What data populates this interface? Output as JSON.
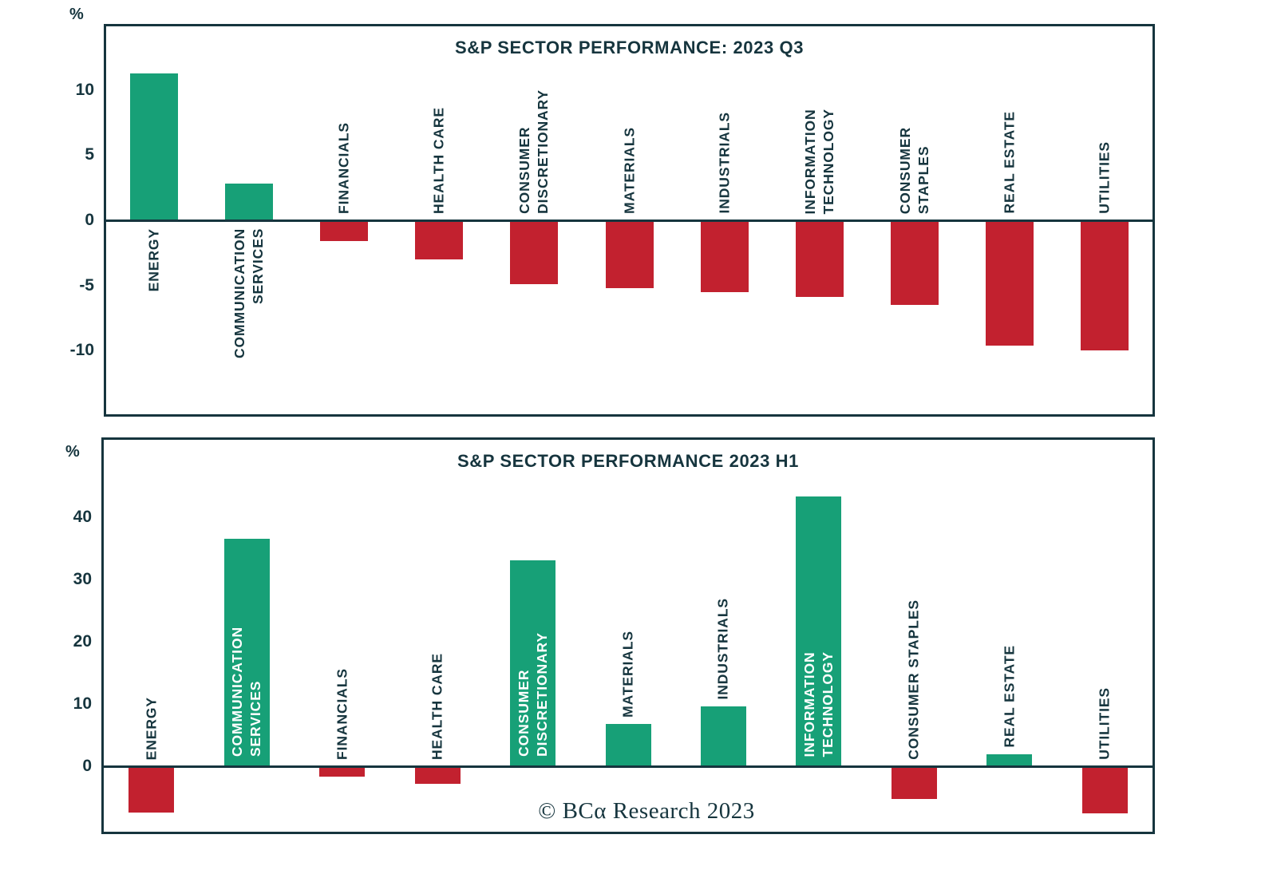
{
  "colors": {
    "green": "#17a077",
    "red": "#c2212f",
    "dark": "#16353e",
    "white": "#ffffff"
  },
  "footer": {
    "text": "© BCα Research 2023"
  },
  "chart_data": [
    {
      "type": "bar",
      "title": "S&P SECTOR PERFORMANCE: 2023 Q3",
      "unit": "%",
      "xlabel": "",
      "ylabel": "%",
      "ylim": [
        -14.9,
        14.9
      ],
      "yticks": [
        10,
        5,
        0,
        -5,
        -10
      ],
      "grid": false,
      "legend": "none",
      "bars": [
        {
          "category": "ENERGY",
          "label_lines": [
            "ENERGY"
          ],
          "value": 11.3,
          "color": "green",
          "label_pos": "below-axis",
          "label_color": "dark"
        },
        {
          "category": "COMMUNICATION SERVICES",
          "label_lines": [
            "COMMUNICATION",
            "SERVICES"
          ],
          "value": 2.8,
          "color": "green",
          "label_pos": "below-axis",
          "label_color": "dark"
        },
        {
          "category": "FINANCIALS",
          "label_lines": [
            "FINANCIALS"
          ],
          "value": -1.6,
          "color": "red",
          "label_pos": "above-axis",
          "label_color": "dark"
        },
        {
          "category": "HEALTH CARE",
          "label_lines": [
            "HEALTH CARE"
          ],
          "value": -3.0,
          "color": "red",
          "label_pos": "above-axis",
          "label_color": "dark"
        },
        {
          "category": "CONSUMER DISCRETIONARY",
          "label_lines": [
            "CONSUMER",
            "DISCRETIONARY"
          ],
          "value": -4.9,
          "color": "red",
          "label_pos": "above-axis",
          "label_color": "dark"
        },
        {
          "category": "MATERIALS",
          "label_lines": [
            "MATERIALS"
          ],
          "value": -5.2,
          "color": "red",
          "label_pos": "above-axis",
          "label_color": "dark"
        },
        {
          "category": "INDUSTRIALS",
          "label_lines": [
            "INDUSTRIALS"
          ],
          "value": -5.5,
          "color": "red",
          "label_pos": "above-axis",
          "label_color": "dark"
        },
        {
          "category": "INFORMATION TECHNOLOGY",
          "label_lines": [
            "INFORMATION",
            "TECHNOLOGY"
          ],
          "value": -5.9,
          "color": "red",
          "label_pos": "above-axis",
          "label_color": "dark"
        },
        {
          "category": "CONSUMER STAPLES",
          "label_lines": [
            "CONSUMER",
            "STAPLES"
          ],
          "value": -6.5,
          "color": "red",
          "label_pos": "above-axis",
          "label_color": "dark"
        },
        {
          "category": "REAL ESTATE",
          "label_lines": [
            "REAL ESTATE"
          ],
          "value": -9.6,
          "color": "red",
          "label_pos": "above-axis",
          "label_color": "dark"
        },
        {
          "category": "UTILITIES",
          "label_lines": [
            "UTILITIES"
          ],
          "value": -10.0,
          "color": "red",
          "label_pos": "above-axis",
          "label_color": "dark"
        }
      ]
    },
    {
      "type": "bar",
      "title": "S&P SECTOR PERFORMANCE 2023 H1",
      "unit": "%",
      "xlabel": "",
      "ylabel": "%",
      "ylim": [
        -10.5,
        52.5
      ],
      "yticks": [
        40,
        30,
        20,
        10,
        0
      ],
      "grid": false,
      "legend": "none",
      "bars": [
        {
          "category": "ENERGY",
          "label_lines": [
            "ENERGY"
          ],
          "value": -7.4,
          "color": "red",
          "label_pos": "above-axis",
          "label_color": "dark"
        },
        {
          "category": "COMMUNICATION SERVICES",
          "label_lines": [
            "COMMUNICATION",
            "SERVICES"
          ],
          "value": 36.6,
          "color": "green",
          "label_pos": "inside-bar",
          "label_color": "white"
        },
        {
          "category": "FINANCIALS",
          "label_lines": [
            "FINANCIALS"
          ],
          "value": -1.6,
          "color": "red",
          "label_pos": "above-axis",
          "label_color": "dark"
        },
        {
          "category": "HEALTH CARE",
          "label_lines": [
            "HEALTH CARE"
          ],
          "value": -2.8,
          "color": "red",
          "label_pos": "above-axis",
          "label_color": "dark"
        },
        {
          "category": "CONSUMER DISCRETIONARY",
          "label_lines": [
            "CONSUMER",
            "DISCRETIONARY"
          ],
          "value": 33.1,
          "color": "green",
          "label_pos": "inside-bar",
          "label_color": "white"
        },
        {
          "category": "MATERIALS",
          "label_lines": [
            "MATERIALS"
          ],
          "value": 6.8,
          "color": "green",
          "label_pos": "above-bar",
          "label_color": "dark"
        },
        {
          "category": "INDUSTRIALS",
          "label_lines": [
            "INDUSTRIALS"
          ],
          "value": 9.7,
          "color": "green",
          "label_pos": "above-bar",
          "label_color": "dark"
        },
        {
          "category": "INFORMATION TECHNOLOGY",
          "label_lines": [
            "INFORMATION",
            "TECHNOLOGY"
          ],
          "value": 43.4,
          "color": "green",
          "label_pos": "inside-bar",
          "label_color": "white"
        },
        {
          "category": "CONSUMER STAPLES",
          "label_lines": [
            "CONSUMER STAPLES"
          ],
          "value": -5.3,
          "color": "red",
          "label_pos": "above-axis",
          "label_color": "dark"
        },
        {
          "category": "REAL ESTATE",
          "label_lines": [
            "REAL ESTATE"
          ],
          "value": 2.0,
          "color": "green",
          "label_pos": "above-bar",
          "label_color": "dark"
        },
        {
          "category": "UTILITIES",
          "label_lines": [
            "UTILITIES"
          ],
          "value": -7.5,
          "color": "red",
          "label_pos": "above-axis",
          "label_color": "dark"
        }
      ]
    }
  ]
}
